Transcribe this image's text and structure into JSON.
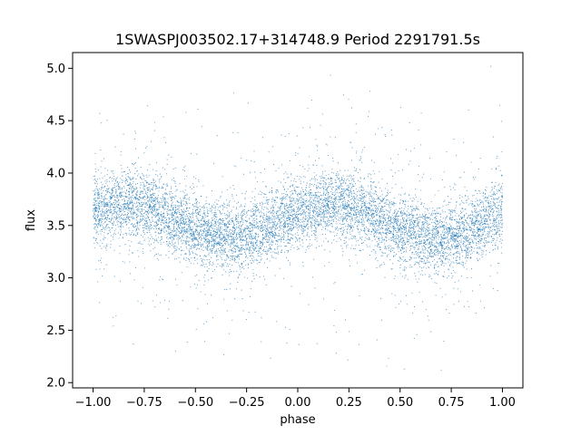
{
  "chart_data": {
    "type": "scatter",
    "title": "1SWASPJ003502.17+314748.9 Period 2291791.5s",
    "xlabel": "phase",
    "ylabel": "flux",
    "xlim": [
      -1.1,
      1.1
    ],
    "ylim": [
      1.95,
      5.15
    ],
    "x_ticks": [
      -1.0,
      -0.75,
      -0.5,
      -0.25,
      0.0,
      0.25,
      0.5,
      0.75,
      1.0
    ],
    "x_tick_labels": [
      "−1.00",
      "−0.75",
      "−0.50",
      "−0.25",
      "0.00",
      "0.25",
      "0.50",
      "0.75",
      "1.00"
    ],
    "y_ticks": [
      2.0,
      2.5,
      3.0,
      3.5,
      4.0,
      4.5,
      5.0
    ],
    "y_tick_labels": [
      "2.0",
      "2.5",
      "3.0",
      "3.5",
      "4.0",
      "4.5",
      "5.0"
    ],
    "grid": false,
    "point_color": "#1f77b4",
    "series": [
      {
        "profile_phase": [
          -1.0,
          -0.9,
          -0.8,
          -0.7,
          -0.6,
          -0.5,
          -0.4,
          -0.3,
          -0.2,
          -0.1,
          0.0,
          0.1,
          0.2,
          0.3,
          0.4,
          0.5,
          0.6,
          0.7,
          0.8,
          0.9,
          1.0
        ],
        "profile_flux": [
          3.62,
          3.68,
          3.72,
          3.66,
          3.55,
          3.45,
          3.4,
          3.38,
          3.42,
          3.52,
          3.62,
          3.68,
          3.72,
          3.66,
          3.55,
          3.45,
          3.4,
          3.38,
          3.42,
          3.52,
          3.62
        ],
        "scatter_range": [
          2.1,
          5.02
        ]
      }
    ]
  }
}
